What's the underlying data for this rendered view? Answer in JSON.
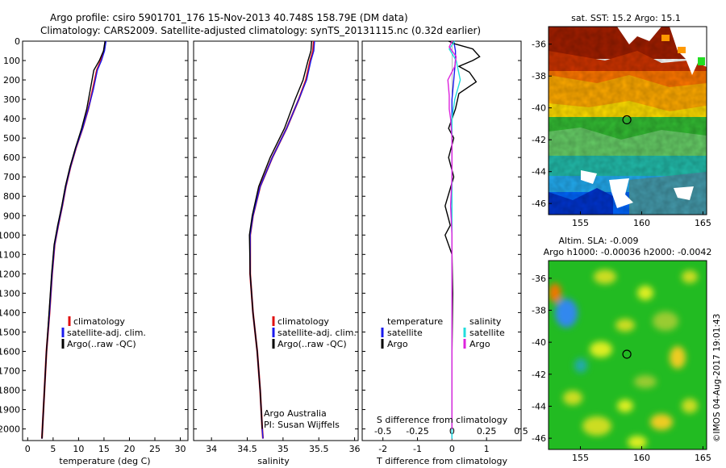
{
  "header": {
    "line1": "Argo profile: csiro 5901701_176 15-Nov-2013 40.748S 158.79E (DM data)",
    "line2": "Climatology: CARS2009. Satellite-adjusted climatology: synTS_20131115.nc (0.32d earlier)"
  },
  "footer": {
    "credit_org": "Argo Australia",
    "credit_pi": "PI: Susan Wijffels",
    "timestamp": "©IMOS 04-Aug-2017 19:01:43"
  },
  "colors": {
    "climatology": "#e01010",
    "satellite_adj": "#1a1aee",
    "argo": "#000000",
    "sal_satellite": "#22dddd",
    "sal_argo": "#dd22dd",
    "sst_hot": "#a01e00",
    "sst_warm": "#ff9900",
    "sst_mid": "#33bb33",
    "sst_cool": "#0066ff",
    "sla_bg": "#22bb22"
  },
  "chart_data": [
    {
      "type": "line",
      "name": "temperature-profile",
      "xlabel": "temperature (deg C)",
      "ylabel": "",
      "xlim": [
        -1,
        31.5
      ],
      "ylim": [
        2060,
        0
      ],
      "xticks": [
        "0",
        "5",
        "10",
        "15",
        "20",
        "25",
        "30"
      ],
      "yticks": [
        "0",
        "100",
        "200",
        "300",
        "400",
        "500",
        "600",
        "700",
        "800",
        "900",
        "1000",
        "1100",
        "1200",
        "1300",
        "1400",
        "1500",
        "1600",
        "1700",
        "1800",
        "1900",
        "2000"
      ],
      "legend": {
        "placement": "lower-right",
        "entries": [
          "climatology",
          "satellite-adj. clim.",
          "Argo(..raw -QC)"
        ]
      },
      "series": [
        {
          "name": "climatology",
          "points": [
            [
              15.3,
              0
            ],
            [
              15.0,
              50
            ],
            [
              14.4,
              100
            ],
            [
              13.6,
              150
            ],
            [
              12.8,
              250
            ],
            [
              11.9,
              350
            ],
            [
              10.8,
              450
            ],
            [
              9.5,
              550
            ],
            [
              8.4,
              650
            ],
            [
              7.5,
              750
            ],
            [
              6.8,
              850
            ],
            [
              6.0,
              950
            ],
            [
              5.3,
              1050
            ],
            [
              4.8,
              1200
            ],
            [
              4.3,
              1400
            ],
            [
              3.7,
              1600
            ],
            [
              3.3,
              1800
            ],
            [
              2.9,
              2000
            ],
            [
              2.8,
              2050
            ]
          ]
        },
        {
          "name": "satellite-adj. clim.",
          "points": [
            [
              15.4,
              0
            ],
            [
              15.1,
              50
            ],
            [
              14.5,
              100
            ],
            [
              13.7,
              150
            ],
            [
              12.9,
              250
            ],
            [
              11.9,
              350
            ],
            [
              10.8,
              450
            ],
            [
              9.5,
              550
            ],
            [
              8.4,
              650
            ],
            [
              7.5,
              750
            ],
            [
              6.8,
              850
            ],
            [
              6.0,
              950
            ],
            [
              5.3,
              1050
            ],
            [
              4.8,
              1200
            ],
            [
              4.3,
              1400
            ],
            [
              3.7,
              1600
            ],
            [
              3.3,
              1800
            ],
            [
              2.9,
              2000
            ],
            [
              2.8,
              2050
            ]
          ]
        },
        {
          "name": "Argo(..raw -QC)",
          "points": [
            [
              15.2,
              0
            ],
            [
              14.9,
              50
            ],
            [
              14.1,
              100
            ],
            [
              13.0,
              150
            ],
            [
              12.3,
              250
            ],
            [
              11.6,
              350
            ],
            [
              10.6,
              450
            ],
            [
              9.4,
              550
            ],
            [
              8.3,
              650
            ],
            [
              7.4,
              750
            ],
            [
              6.7,
              850
            ],
            [
              5.9,
              950
            ],
            [
              5.2,
              1050
            ],
            [
              4.7,
              1200
            ],
            [
              4.2,
              1400
            ],
            [
              3.7,
              1600
            ],
            [
              3.3,
              1800
            ],
            [
              2.9,
              2000
            ],
            [
              2.8,
              2050
            ]
          ]
        }
      ]
    },
    {
      "type": "line",
      "name": "salinity-profile",
      "xlabel": "salinity",
      "ylabel": "",
      "xlim": [
        33.75,
        36.05
      ],
      "ylim": [
        2060,
        0
      ],
      "xticks": [
        "34",
        "34.5",
        "35",
        "35.5",
        "36"
      ],
      "legend": {
        "placement": "lower-right",
        "entries": [
          "climatology",
          "satellite-adj. clim.",
          "Argo(..raw -QC)"
        ]
      },
      "series": [
        {
          "name": "climatology",
          "points": [
            [
              35.43,
              0
            ],
            [
              35.42,
              50
            ],
            [
              35.38,
              100
            ],
            [
              35.32,
              200
            ],
            [
              35.22,
              300
            ],
            [
              35.05,
              450
            ],
            [
              34.85,
              600
            ],
            [
              34.68,
              750
            ],
            [
              34.58,
              900
            ],
            [
              34.54,
              1000
            ],
            [
              34.54,
              1200
            ],
            [
              34.58,
              1400
            ],
            [
              34.64,
              1600
            ],
            [
              34.68,
              1800
            ],
            [
              34.71,
              2000
            ],
            [
              34.72,
              2050
            ]
          ]
        },
        {
          "name": "satellite-adj. clim.",
          "points": [
            [
              35.44,
              0
            ],
            [
              35.43,
              50
            ],
            [
              35.39,
              100
            ],
            [
              35.33,
              200
            ],
            [
              35.22,
              300
            ],
            [
              35.05,
              450
            ],
            [
              34.85,
              600
            ],
            [
              34.68,
              750
            ],
            [
              34.58,
              900
            ],
            [
              34.54,
              1000
            ],
            [
              34.54,
              1200
            ],
            [
              34.58,
              1400
            ],
            [
              34.64,
              1600
            ],
            [
              34.68,
              1800
            ],
            [
              34.71,
              2000
            ],
            [
              34.72,
              2050
            ]
          ]
        },
        {
          "name": "Argo(..raw -QC)",
          "points": [
            [
              35.4,
              0
            ],
            [
              35.39,
              50
            ],
            [
              35.35,
              100
            ],
            [
              35.28,
              200
            ],
            [
              35.17,
              300
            ],
            [
              35.02,
              450
            ],
            [
              34.82,
              600
            ],
            [
              34.66,
              750
            ],
            [
              34.57,
              900
            ],
            [
              34.53,
              1000
            ],
            [
              34.54,
              1200
            ],
            [
              34.58,
              1400
            ],
            [
              34.64,
              1600
            ],
            [
              34.68,
              1800
            ],
            [
              34.71,
              2000
            ]
          ]
        }
      ]
    },
    {
      "type": "line",
      "name": "difference-profile",
      "xlabel": "T difference from climatology",
      "x2label": "S difference from climatology",
      "ylabel": "",
      "xlim": [
        -2.6,
        2.0
      ],
      "x2lim": [
        -0.65,
        0.5
      ],
      "ylim": [
        2060,
        0
      ],
      "xticks": [
        "-2",
        "-1",
        "0",
        "1"
      ],
      "x2ticks": [
        "-0.5",
        "-0.25",
        "0",
        "0.25",
        "0.5"
      ],
      "legend": {
        "placement": "lower",
        "groups": [
          {
            "title": "temperature",
            "entries": [
              "satellite",
              "Argo"
            ]
          },
          {
            "title": "salinity",
            "entries": [
              "satellite",
              "Argo"
            ]
          }
        ]
      },
      "series": [
        {
          "name": "temperature satellite",
          "axis": "T",
          "points": [
            [
              0.05,
              0
            ],
            [
              0.1,
              50
            ],
            [
              0.1,
              100
            ],
            [
              0.05,
              200
            ],
            [
              0,
              300
            ],
            [
              0,
              2050
            ]
          ]
        },
        {
          "name": "temperature Argo",
          "axis": "T",
          "points": [
            [
              -0.1,
              0
            ],
            [
              0.1,
              15
            ],
            [
              0.6,
              40
            ],
            [
              0.8,
              80
            ],
            [
              0.6,
              100
            ],
            [
              0.2,
              130
            ],
            [
              0.5,
              160
            ],
            [
              0.7,
              210
            ],
            [
              0.2,
              270
            ],
            [
              0.1,
              350
            ],
            [
              -0.1,
              450
            ],
            [
              0.05,
              500
            ],
            [
              -0.1,
              600
            ],
            [
              0.05,
              700
            ],
            [
              -0.2,
              850
            ],
            [
              -0.05,
              950
            ],
            [
              -0.2,
              1000
            ],
            [
              0,
              1100
            ],
            [
              0.02,
              1300
            ],
            [
              0,
              1600
            ],
            [
              0,
              2000
            ]
          ]
        },
        {
          "name": "salinity satellite",
          "axis": "S",
          "points": [
            [
              0.02,
              0
            ],
            [
              -0.02,
              40
            ],
            [
              0.03,
              100
            ],
            [
              0.06,
              200
            ],
            [
              0.02,
              300
            ],
            [
              0,
              400
            ],
            [
              0,
              2050
            ]
          ]
        },
        {
          "name": "salinity Argo",
          "axis": "S",
          "points": [
            [
              0,
              0
            ],
            [
              -0.02,
              30
            ],
            [
              0.03,
              80
            ],
            [
              0.02,
              130
            ],
            [
              -0.03,
              200
            ],
            [
              -0.02,
              280
            ],
            [
              -0.02,
              350
            ],
            [
              -0.01,
              400
            ],
            [
              0,
              500
            ],
            [
              0,
              700
            ],
            [
              -0.01,
              850
            ],
            [
              0,
              1000
            ],
            [
              0,
              2000
            ]
          ]
        }
      ]
    },
    {
      "type": "heatmap",
      "name": "sst-map",
      "title": "sat. SST: 15.2 Argo: 15.1",
      "xlim": [
        152.4,
        165.3
      ],
      "ylim": [
        -46.7,
        -34.9
      ],
      "xticks": [
        "155",
        "160",
        "165"
      ],
      "yticks": [
        "-36",
        "-38",
        "-40",
        "-42",
        "-44",
        "-46"
      ],
      "marker": {
        "lon": 158.79,
        "lat": -40.748
      }
    },
    {
      "type": "heatmap",
      "name": "sla-map",
      "title": "Altim. SLA: -0.009",
      "subtitle": "Argo h1000: -0.00036 h2000: -0.0042",
      "xlim": [
        152.4,
        165.3
      ],
      "ylim": [
        -46.7,
        -34.9
      ],
      "xticks": [
        "155",
        "160",
        "165"
      ],
      "yticks": [
        "-36",
        "-38",
        "-40",
        "-42",
        "-44",
        "-46"
      ],
      "marker": {
        "lon": 158.79,
        "lat": -40.748
      }
    }
  ]
}
